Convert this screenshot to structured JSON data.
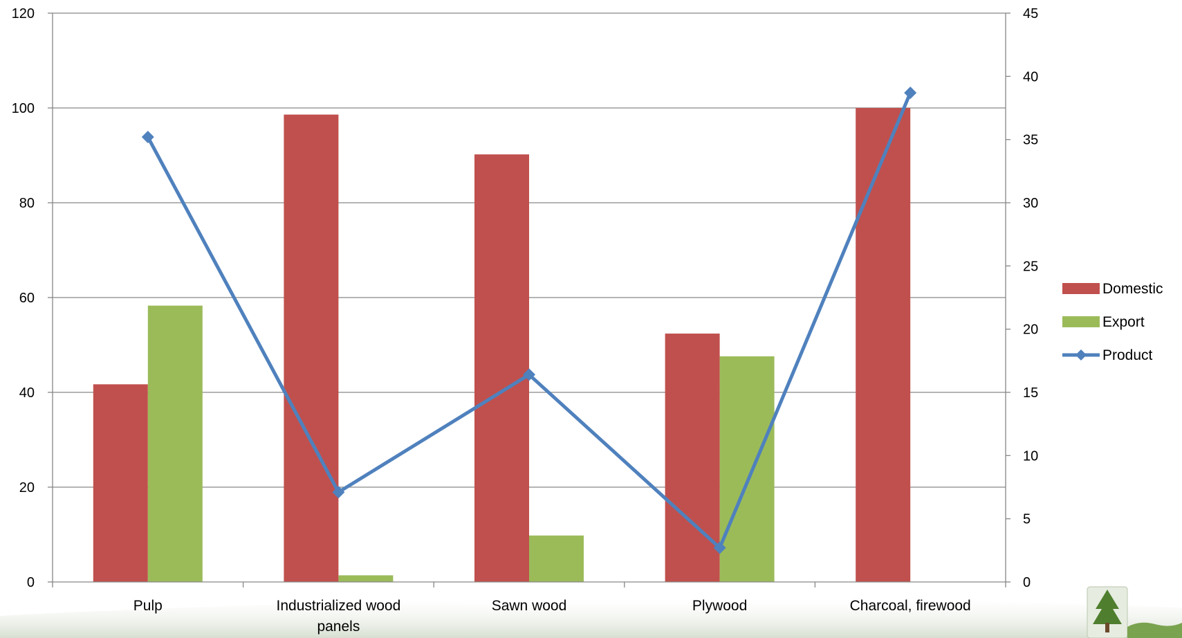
{
  "chart_data": {
    "type": "bar",
    "categories": [
      "Pulp",
      "Industrialized wood panels",
      "Sawn wood",
      "Plywood",
      "Charcoal, firewood"
    ],
    "series": [
      {
        "name": "Domestic",
        "kind": "bar",
        "axis": "left",
        "color": "#C0504D",
        "values": [
          41.7,
          98.6,
          90.2,
          52.4,
          100
        ]
      },
      {
        "name": "Export",
        "kind": "bar",
        "axis": "left",
        "color": "#9BBB59",
        "values": [
          58.3,
          1.4,
          9.8,
          47.6,
          0
        ]
      },
      {
        "name": "Product",
        "kind": "line",
        "axis": "right",
        "color": "#4F81BD",
        "marker": "diamond",
        "values": [
          35.2,
          7.1,
          16.4,
          2.7,
          38.7
        ]
      }
    ],
    "y_left": {
      "min": 0,
      "max": 120,
      "ticks": [
        0,
        20,
        40,
        60,
        80,
        100,
        120
      ]
    },
    "y_right": {
      "min": 0,
      "max": 45,
      "ticks": [
        0,
        5,
        10,
        15,
        20,
        25,
        30,
        35,
        40,
        45
      ]
    },
    "grid": true,
    "legend": "right",
    "title": "",
    "xlabel": "",
    "ylabel": "",
    "y2label": ""
  },
  "colors": {
    "gridline": "#868686",
    "axis": "#868686",
    "footer_band": "#dde6d6",
    "logo_green": "#5f8f3a"
  }
}
